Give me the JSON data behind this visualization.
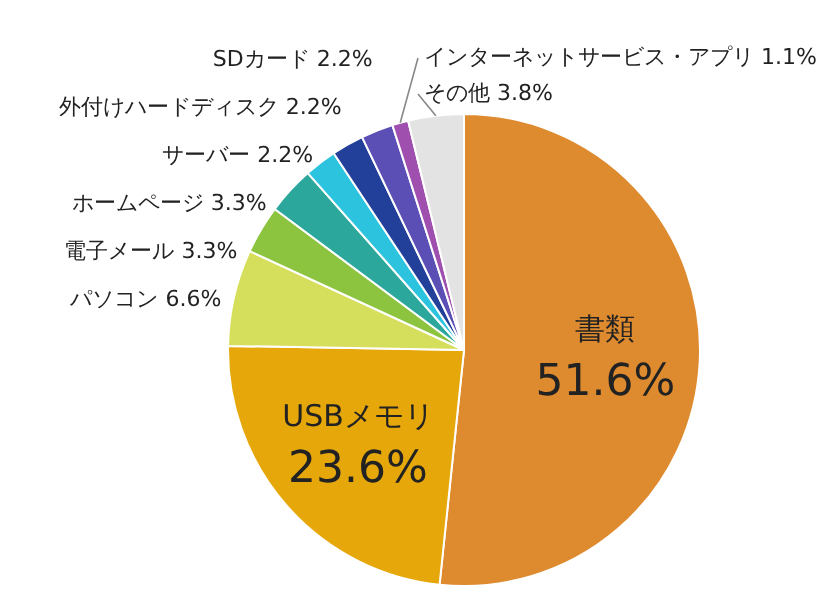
{
  "chart_data": {
    "type": "pie",
    "categories": [
      "書類",
      "USBメモリ",
      "パソコン",
      "電子メール",
      "ホームページ",
      "サーバー",
      "外付けハードディスク",
      "SDカード",
      "インターネットサービス・アプリ",
      "その他"
    ],
    "values": [
      51.6,
      23.6,
      6.6,
      3.3,
      3.3,
      2.2,
      2.2,
      2.2,
      1.1,
      3.8
    ],
    "value_labels": [
      "51.6%",
      "23.6%",
      "6.6%",
      "3.3%",
      "3.3%",
      "2.2%",
      "2.2%",
      "2.2%",
      "1.1%",
      "3.8%"
    ],
    "colors": [
      "#de8a2f",
      "#e6a70a",
      "#d6df5c",
      "#8cc43f",
      "#2ba79b",
      "#2cc3df",
      "#22409a",
      "#5b4fb6",
      "#9f4fae",
      "#e3e3e3"
    ]
  }
}
